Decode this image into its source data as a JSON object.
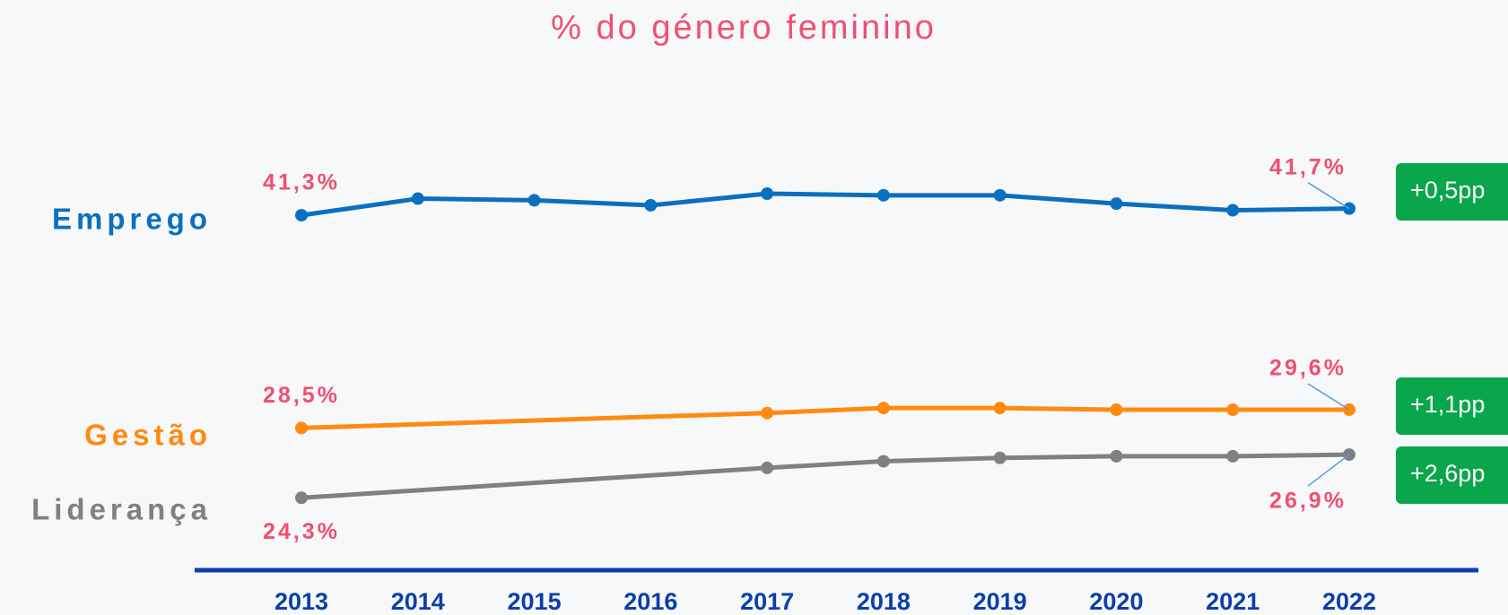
{
  "chart_data": {
    "type": "line",
    "title": "% do género feminino",
    "xlim": [
      2013,
      2022
    ],
    "xticks": [
      2013,
      2014,
      2015,
      2016,
      2017,
      2018,
      2019,
      2020,
      2021,
      2022
    ],
    "ylim": [
      20,
      45
    ],
    "series": [
      {
        "name": "Emprego",
        "color": "#0b6fbf",
        "x": [
          2013,
          2014,
          2015,
          2016,
          2017,
          2018,
          2019,
          2020,
          2021,
          2022
        ],
        "values": [
          41.3,
          42.3,
          42.2,
          41.9,
          42.6,
          42.5,
          42.5,
          42.0,
          41.6,
          41.7
        ],
        "value_labels": [
          "41,3%",
          null,
          null,
          null,
          null,
          null,
          null,
          null,
          null,
          "41,7%"
        ],
        "change": "+0,5pp"
      },
      {
        "name": "Gestão",
        "color": "#ff8a0f",
        "x": [
          2013,
          2017,
          2018,
          2019,
          2020,
          2021,
          2022
        ],
        "values": [
          28.5,
          29.4,
          29.7,
          29.7,
          29.6,
          29.6,
          29.6
        ],
        "value_labels": [
          "28,5%",
          null,
          null,
          null,
          null,
          null,
          "29,6%"
        ],
        "change": "+1,1pp"
      },
      {
        "name": "Liderança",
        "color": "#808080",
        "x": [
          2013,
          2017,
          2018,
          2019,
          2020,
          2021,
          2022
        ],
        "values": [
          24.3,
          26.1,
          26.5,
          26.7,
          26.8,
          26.8,
          26.9
        ],
        "value_labels": [
          "24,3%",
          null,
          null,
          null,
          null,
          null,
          "26,9%"
        ],
        "change": "+2,6pp"
      }
    ],
    "badge_color": "#0aa64c"
  }
}
